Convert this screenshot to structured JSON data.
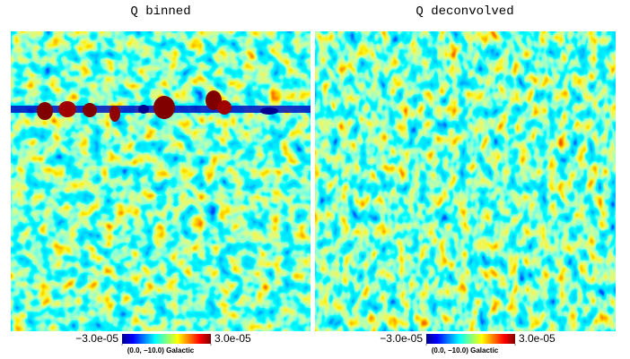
{
  "panels": [
    {
      "title": "Q binned",
      "colorbar": {
        "ticks": [
          {
            "value": -3e-05,
            "label": "−3.0e-05"
          },
          {
            "value": 3e-05,
            "label": "3.0e-05"
          }
        ]
      },
      "coordinates": "(0.0, −10.0) Galactic"
    },
    {
      "title": "Q deconvolved",
      "colorbar": {
        "ticks": [
          {
            "value": -3e-05,
            "label": "−3.0e-05"
          },
          {
            "value": 3e-05,
            "label": "3.0e-05"
          }
        ]
      },
      "coordinates": "(0.0, −10.0) Galactic"
    }
  ]
}
